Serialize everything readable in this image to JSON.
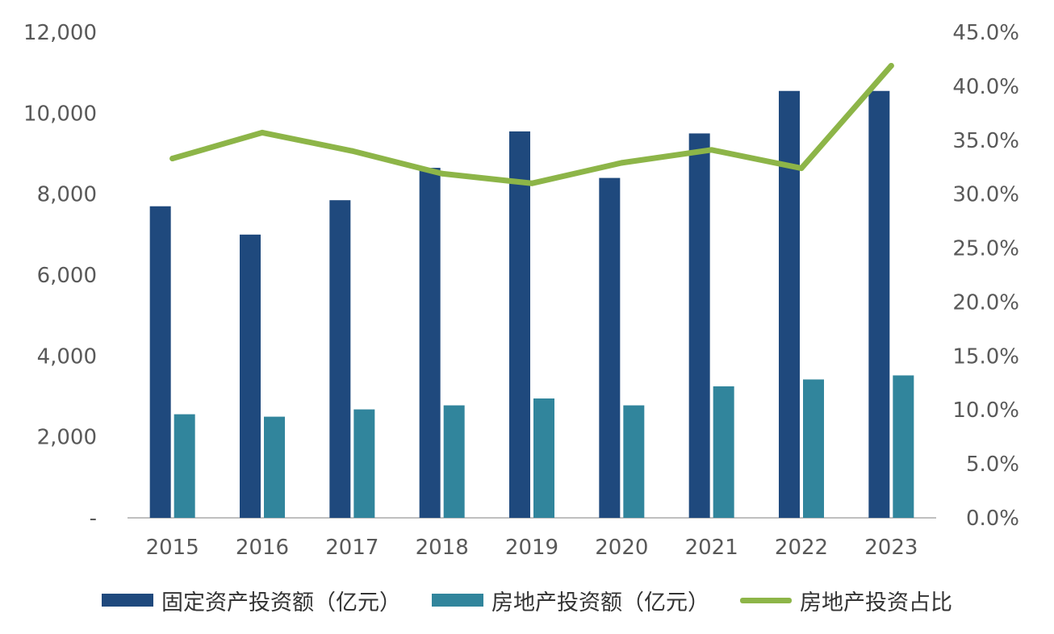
{
  "chart_data": {
    "type": "bar",
    "categories": [
      "2015",
      "2016",
      "2017",
      "2018",
      "2019",
      "2020",
      "2021",
      "2022",
      "2023"
    ],
    "series": [
      {
        "name": "固定资产投资额（亿元）",
        "type": "bar",
        "axis": "left",
        "color": "#1f497d",
        "values": [
          7700,
          7000,
          7850,
          8650,
          9550,
          8400,
          9500,
          10550,
          10550
        ]
      },
      {
        "name": "房地产投资额（亿元）",
        "type": "bar",
        "axis": "left",
        "color": "#31859c",
        "values": [
          2560,
          2500,
          2680,
          2780,
          2950,
          2780,
          3250,
          3420,
          3520
        ]
      },
      {
        "name": "房地产投资占比",
        "type": "line",
        "axis": "right",
        "color": "#8db548",
        "values": [
          33.3,
          35.7,
          34.0,
          31.9,
          31.0,
          32.9,
          34.1,
          32.4,
          41.9
        ]
      }
    ],
    "y_left": {
      "min": 0,
      "max": 12000,
      "ticks": [
        "-",
        "2,000",
        "4,000",
        "6,000",
        "8,000",
        "10,000",
        "12,000"
      ],
      "tick_values": [
        0,
        2000,
        4000,
        6000,
        8000,
        10000,
        12000
      ]
    },
    "y_right": {
      "min": 0,
      "max": 45,
      "ticks": [
        "0.0%",
        "5.0%",
        "10.0%",
        "15.0%",
        "20.0%",
        "25.0%",
        "30.0%",
        "35.0%",
        "40.0%",
        "45.0%"
      ],
      "tick_values": [
        0,
        5,
        10,
        15,
        20,
        25,
        30,
        35,
        40,
        45
      ]
    },
    "grid": false,
    "legend_position": "bottom"
  }
}
